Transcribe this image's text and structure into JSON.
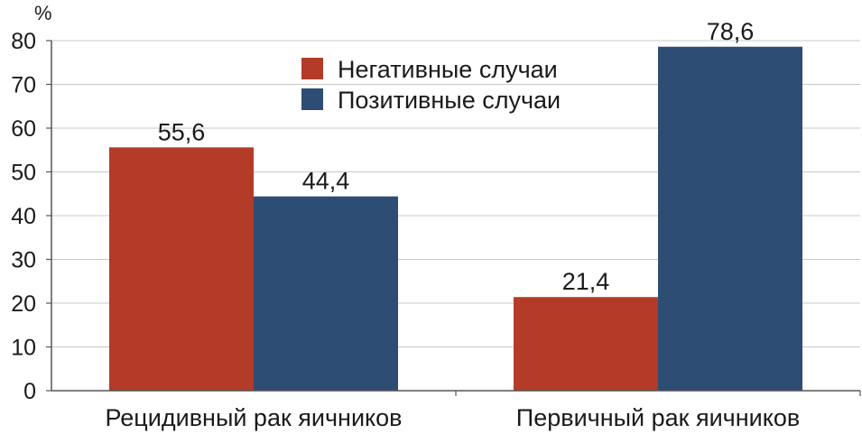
{
  "chart_data": {
    "type": "bar",
    "y_unit": "%",
    "categories": [
      "Рецидивный рак яичников",
      "Первичный рак яичников"
    ],
    "series": [
      {
        "name": "Негативные случаи",
        "color": "#b43b27",
        "values": [
          55.6,
          21.4
        ],
        "labels": [
          "55,6",
          "21,4"
        ]
      },
      {
        "name": "Позитивные случаи",
        "color": "#2e4d74",
        "values": [
          44.4,
          78.6
        ],
        "labels": [
          "44,4",
          "78,6"
        ]
      }
    ],
    "ylim": [
      0,
      80
    ],
    "yticks": [
      0,
      10,
      20,
      30,
      40,
      50,
      60,
      70,
      80
    ],
    "grid": true,
    "legend_position": "top-center"
  }
}
